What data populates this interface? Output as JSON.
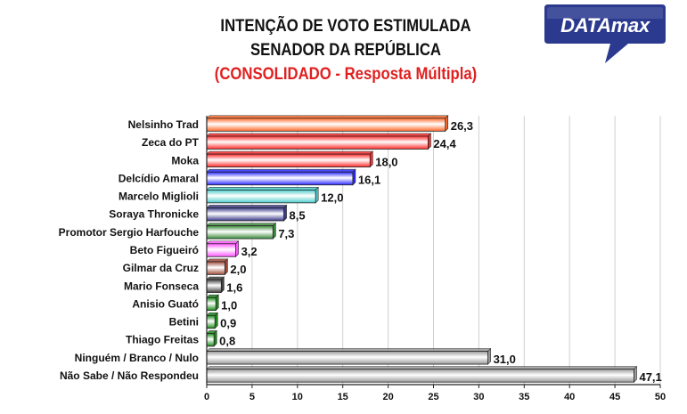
{
  "header": {
    "title_line1": "INTENÇÃO DE VOTO ESTIMULADA",
    "title_line2": "SENADOR DA REPÚBLICA",
    "subtitle": "(CONSOLIDADO - Resposta Múltipla)"
  },
  "logo": {
    "text": "DATAmax",
    "color": "#2b3a8f"
  },
  "chart_data": {
    "type": "bar",
    "orientation": "horizontal",
    "title": "INTENÇÃO DE VOTO ESTIMULADA - SENADOR DA REPÚBLICA",
    "subtitle": "(CONSOLIDADO - Resposta Múltipla)",
    "categories": [
      "Nelsinho Trad",
      "Zeca do PT",
      "Moka",
      "Delcídio Amaral",
      "Marcelo Miglioli",
      "Soraya Thronicke",
      "Promotor Sergio Harfouche",
      "Beto Figueiró",
      "Gilmar da Cruz",
      "Mario Fonseca",
      "Anisio Guató",
      "Betini",
      "Thiago Freitas",
      "Ninguém / Branco / Nulo",
      "Não Sabe / Não Respondeu"
    ],
    "values": [
      26.3,
      24.4,
      18.0,
      16.1,
      12.0,
      8.5,
      7.3,
      3.2,
      2.0,
      1.6,
      1.0,
      0.9,
      0.8,
      31.0,
      47.1
    ],
    "value_labels": [
      "26,3",
      "24,4",
      "18,0",
      "16,1",
      "12,0",
      "8,5",
      "7,3",
      "3,2",
      "2,0",
      "1,6",
      "1,0",
      "0,9",
      "0,8",
      "31,0",
      "47,1"
    ],
    "colors": [
      "#ff6a2a",
      "#ff2a2a",
      "#ff2a2a",
      "#2a2aff",
      "#4ccccc",
      "#3a3a8a",
      "#3a8a3a",
      "#ff55ff",
      "#a04a3a",
      "#404040",
      "#1a8a1a",
      "#1a8a1a",
      "#1a8a1a",
      "#9a9a9a",
      "#9a9a9a"
    ],
    "xlim": [
      0,
      50
    ],
    "xticks": [
      0,
      5,
      10,
      15,
      20,
      25,
      30,
      35,
      40,
      45,
      50
    ],
    "grid": true
  }
}
